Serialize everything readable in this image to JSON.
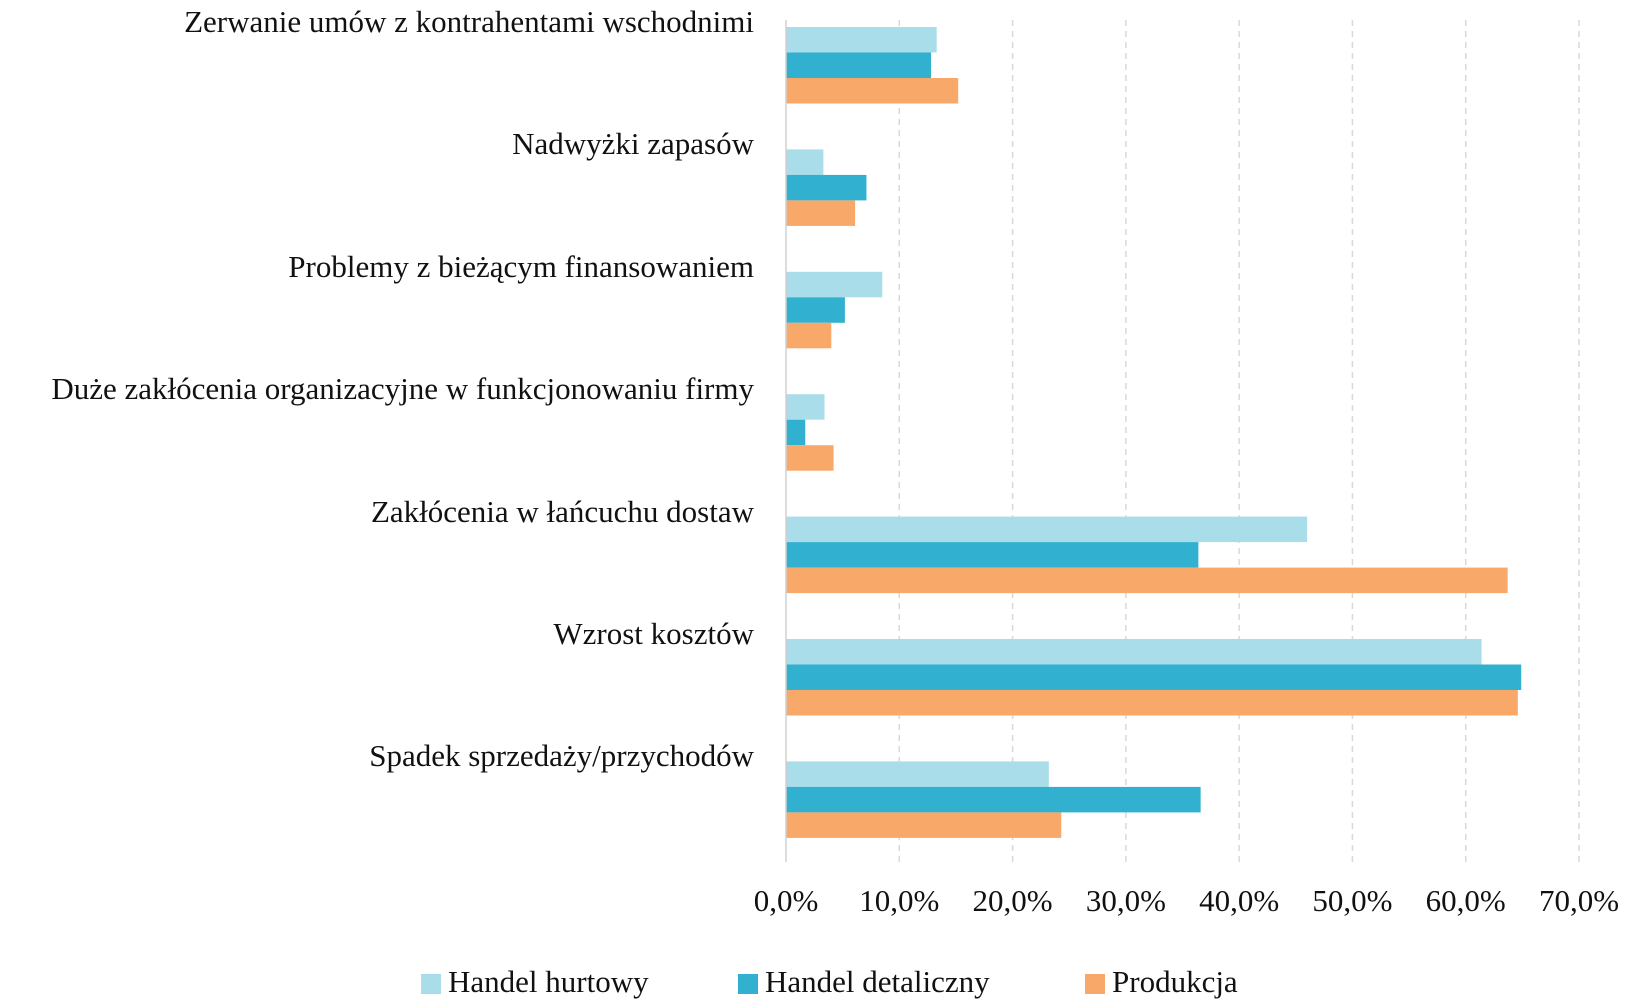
{
  "chart_data": {
    "type": "bar",
    "orientation": "horizontal",
    "categories": [
      "Zerwanie umów z kontrahentami wschodnimi",
      "Nadwyżki zapasów",
      "Problemy z bieżącym finansowaniem",
      "Duże zakłócenia organizacyjne w funkcjonowaniu firmy",
      "Zakłócenia w łańcuchu dostaw",
      "Wzrost kosztów",
      "Spadek sprzedaży/przychodów"
    ],
    "series": [
      {
        "name": "Handel hurtowy",
        "color": "#a8dde9",
        "values": [
          13.3,
          3.3,
          8.5,
          3.4,
          46.0,
          61.4,
          23.2
        ]
      },
      {
        "name": "Handel detaliczny",
        "color": "#31b0cf",
        "values": [
          12.8,
          7.1,
          5.2,
          1.7,
          36.4,
          64.9,
          36.6
        ]
      },
      {
        "name": "Produkcja",
        "color": "#f8a96a",
        "values": [
          15.2,
          6.1,
          4.0,
          4.2,
          63.7,
          64.6,
          24.3
        ]
      }
    ],
    "xlim": [
      0,
      70
    ],
    "xticks": [
      {
        "value": 0,
        "label": "0,0%"
      },
      {
        "value": 10,
        "label": "10,0%"
      },
      {
        "value": 20,
        "label": "20,0%"
      },
      {
        "value": 30,
        "label": "30,0%"
      },
      {
        "value": 40,
        "label": "40,0%"
      },
      {
        "value": 50,
        "label": "50,0%"
      },
      {
        "value": 60,
        "label": "60,0%"
      },
      {
        "value": 70,
        "label": "70,0%"
      }
    ],
    "grid": true,
    "legend": "bottom"
  }
}
